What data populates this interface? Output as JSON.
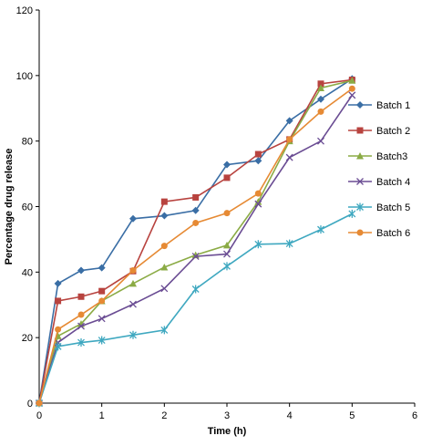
{
  "chart_data": {
    "type": "line",
    "title": "",
    "xlabel": "Time (h)",
    "ylabel": "Percentage drug release",
    "xlim": [
      0,
      6
    ],
    "ylim": [
      0,
      120
    ],
    "x_ticks": [
      "0",
      "1",
      "2",
      "3",
      "4",
      "5",
      "6"
    ],
    "y_ticks": [
      "0",
      "20",
      "40",
      "60",
      "80",
      "100",
      "120"
    ],
    "grid": false,
    "legend_position": "right",
    "series": [
      {
        "name": "Batch 1",
        "color": "#3a6ea5",
        "marker": "diamond",
        "x": [
          0,
          0.3,
          0.67,
          1,
          1.5,
          2,
          2.5,
          3,
          3.5,
          4,
          4.5,
          5
        ],
        "y": [
          0,
          36.5,
          40.5,
          41.3,
          56.3,
          57.2,
          58.8,
          72.8,
          74,
          86.2,
          92.8,
          99
        ]
      },
      {
        "name": "Batch 2",
        "color": "#b8433f",
        "marker": "square",
        "x": [
          0,
          0.3,
          0.67,
          1,
          1.5,
          2,
          2.5,
          3,
          3.5,
          4,
          4.5,
          5
        ],
        "y": [
          0,
          31.2,
          32.5,
          34.2,
          40.3,
          61.5,
          62.8,
          68.8,
          76,
          80.5,
          97.5,
          98.7
        ]
      },
      {
        "name": "Batch3",
        "color": "#8bab45",
        "marker": "triangle",
        "x": [
          0,
          0.3,
          0.67,
          1,
          1.5,
          2,
          2.5,
          3,
          3.5,
          4,
          4.5,
          5
        ],
        "y": [
          0,
          20.5,
          24.2,
          31.2,
          36.5,
          41.5,
          45.2,
          48.2,
          61.5,
          80,
          96.2,
          98.5
        ]
      },
      {
        "name": "Batch 4",
        "color": "#6a4c93",
        "marker": "x",
        "x": [
          0,
          0.3,
          0.67,
          1,
          1.5,
          2,
          2.5,
          3,
          3.5,
          4,
          4.5,
          5
        ],
        "y": [
          0,
          18.5,
          23.5,
          25.8,
          30.2,
          35,
          44.8,
          45.5,
          60.8,
          75,
          80,
          94
        ]
      },
      {
        "name": "Batch 5",
        "color": "#3fa8c0",
        "marker": "star",
        "x": [
          0,
          0.3,
          0.67,
          1,
          1.5,
          2,
          2.5,
          3,
          3.5,
          4,
          4.5,
          5
        ],
        "y": [
          0,
          17.3,
          18.5,
          19.2,
          20.8,
          22.3,
          34.8,
          41.8,
          48.5,
          48.7,
          53,
          57.8
        ]
      },
      {
        "name": "Batch 6",
        "color": "#e68a34",
        "marker": "circle",
        "x": [
          0,
          0.3,
          0.67,
          1,
          1.5,
          2,
          2.5,
          3,
          3.5,
          4,
          4.5,
          5
        ],
        "y": [
          0,
          22.5,
          27,
          31.2,
          40.5,
          48,
          55,
          58,
          64,
          80.5,
          89,
          96
        ]
      }
    ]
  }
}
